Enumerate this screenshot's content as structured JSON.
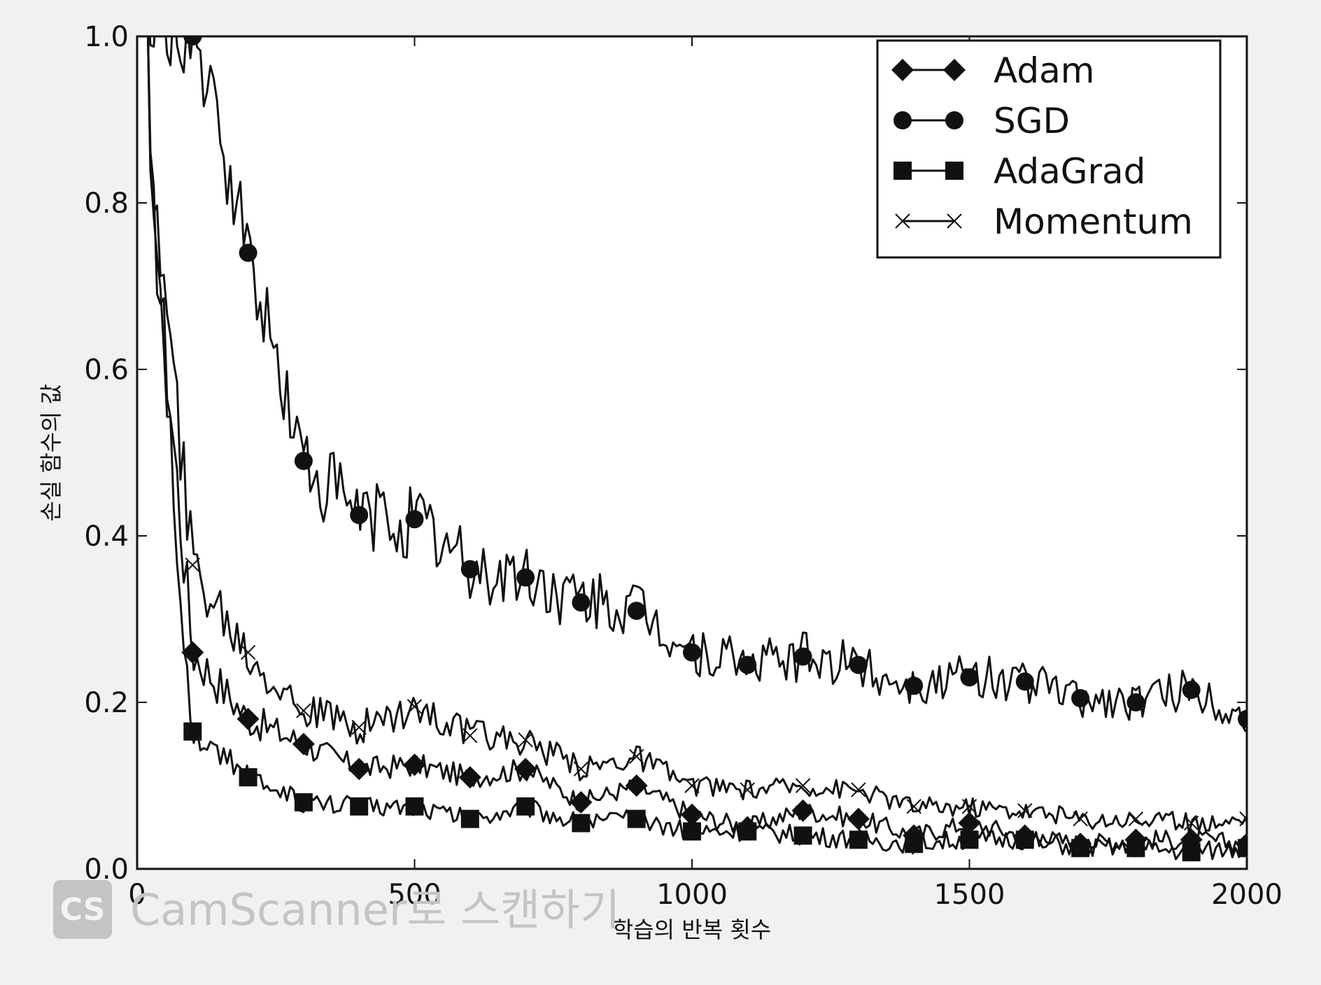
{
  "chart_data": {
    "type": "line",
    "title": "",
    "xlabel": "학습의 반복 횟수",
    "ylabel": "손실 함수의 값",
    "xlim": [
      0,
      2000
    ],
    "ylim": [
      0.0,
      1.0
    ],
    "x_ticks": [
      "0",
      "500",
      "1000",
      "1500",
      "2000"
    ],
    "y_ticks": [
      "0.0",
      "0.2",
      "0.4",
      "0.6",
      "0.8",
      "1.0"
    ],
    "grid": false,
    "legend_position": "top-right",
    "series": [
      {
        "name": "Adam",
        "marker": "diamond",
        "x": [
          0,
          100,
          200,
          300,
          400,
          500,
          600,
          700,
          800,
          900,
          1000,
          1100,
          1200,
          1300,
          1400,
          1500,
          1600,
          1700,
          1800,
          1900,
          2000
        ],
        "y": [
          1.0,
          0.26,
          0.18,
          0.15,
          0.12,
          0.125,
          0.11,
          0.12,
          0.08,
          0.1,
          0.065,
          0.05,
          0.07,
          0.06,
          0.04,
          0.055,
          0.04,
          0.03,
          0.035,
          0.035,
          0.03
        ]
      },
      {
        "name": "SGD",
        "marker": "circle",
        "x": [
          0,
          100,
          200,
          300,
          400,
          500,
          600,
          700,
          800,
          900,
          1000,
          1100,
          1200,
          1300,
          1400,
          1500,
          1600,
          1700,
          1800,
          1900,
          2000
        ],
        "y": [
          1.0,
          1.0,
          0.74,
          0.49,
          0.425,
          0.42,
          0.36,
          0.35,
          0.32,
          0.31,
          0.26,
          0.245,
          0.255,
          0.245,
          0.22,
          0.23,
          0.225,
          0.205,
          0.2,
          0.215,
          0.18
        ]
      },
      {
        "name": "AdaGrad",
        "marker": "square",
        "x": [
          0,
          100,
          200,
          300,
          400,
          500,
          600,
          700,
          800,
          900,
          1000,
          1100,
          1200,
          1300,
          1400,
          1500,
          1600,
          1700,
          1800,
          1900,
          2000
        ],
        "y": [
          1.0,
          0.165,
          0.11,
          0.08,
          0.075,
          0.075,
          0.06,
          0.075,
          0.055,
          0.06,
          0.045,
          0.045,
          0.04,
          0.035,
          0.03,
          0.035,
          0.035,
          0.025,
          0.025,
          0.02,
          0.025
        ]
      },
      {
        "name": "Momentum",
        "marker": "x",
        "x": [
          0,
          100,
          200,
          300,
          400,
          500,
          600,
          700,
          800,
          900,
          1000,
          1100,
          1200,
          1300,
          1400,
          1500,
          1600,
          1700,
          1800,
          1900,
          2000
        ],
        "y": [
          1.0,
          0.365,
          0.26,
          0.19,
          0.17,
          0.195,
          0.16,
          0.155,
          0.12,
          0.135,
          0.1,
          0.095,
          0.1,
          0.095,
          0.075,
          0.075,
          0.07,
          0.06,
          0.06,
          0.055,
          0.06
        ]
      }
    ]
  },
  "colors": {
    "background": "#f1f1ef",
    "plot_background": "#ffffff",
    "line": "#111111",
    "watermark": "#c4c4c4"
  },
  "watermark": {
    "badge": "CS",
    "text": "CamScanner로 스캔하기",
    "icon": "camscanner-logo-icon"
  }
}
